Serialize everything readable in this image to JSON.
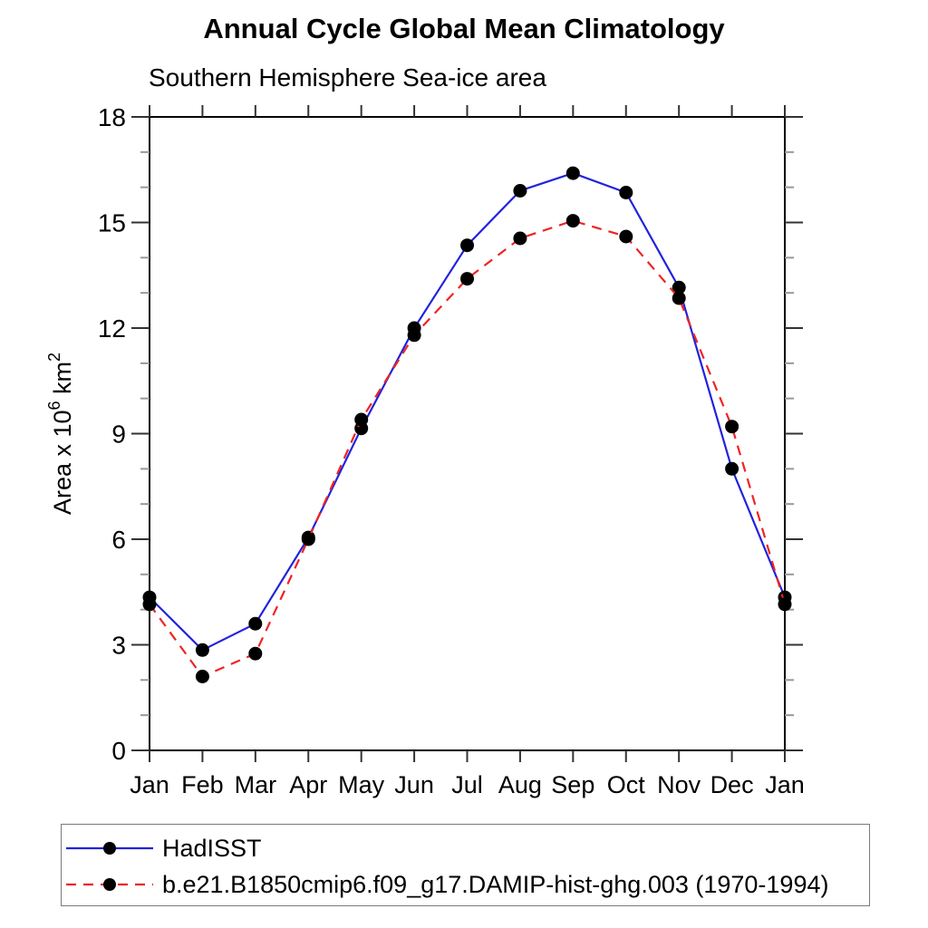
{
  "page": {
    "background": "#ffffff"
  },
  "chart_data": {
    "type": "line",
    "title": "Annual Cycle Global Mean Climatology",
    "subtitle": "Southern Hemisphere Sea-ice area",
    "ylabel": "Area x 10^6 km^2",
    "xlabel": "",
    "categories": [
      "Jan",
      "Feb",
      "Mar",
      "Apr",
      "May",
      "Jun",
      "Jul",
      "Aug",
      "Sep",
      "Oct",
      "Nov",
      "Dec",
      "Jan"
    ],
    "ylim": [
      0,
      18
    ],
    "ytick_major_step": 3,
    "ytick_minor_step": 1,
    "grid": false,
    "legend_position": "bottom-left-box",
    "axis_color": "#000000",
    "tick_major_color": "#333333",
    "tick_minor_color": "#999999",
    "marker_color": "#000000",
    "series": [
      {
        "name": "HadISST",
        "color": "#2222dd",
        "style": "solid",
        "marker": "circle",
        "values": [
          4.35,
          2.85,
          3.6,
          6.05,
          9.15,
          12.0,
          14.35,
          15.9,
          16.4,
          15.85,
          13.15,
          8.0,
          4.35
        ]
      },
      {
        "name": "b.e21.B1850cmip6.f09_g17.DAMIP-hist-ghg.003 (1970-1994)",
        "color": "#ee2424",
        "style": "dashed",
        "marker": "circle",
        "values": [
          4.15,
          2.1,
          2.75,
          6.0,
          9.4,
          11.8,
          13.4,
          14.55,
          15.05,
          14.6,
          12.85,
          9.2,
          4.15
        ]
      }
    ]
  }
}
